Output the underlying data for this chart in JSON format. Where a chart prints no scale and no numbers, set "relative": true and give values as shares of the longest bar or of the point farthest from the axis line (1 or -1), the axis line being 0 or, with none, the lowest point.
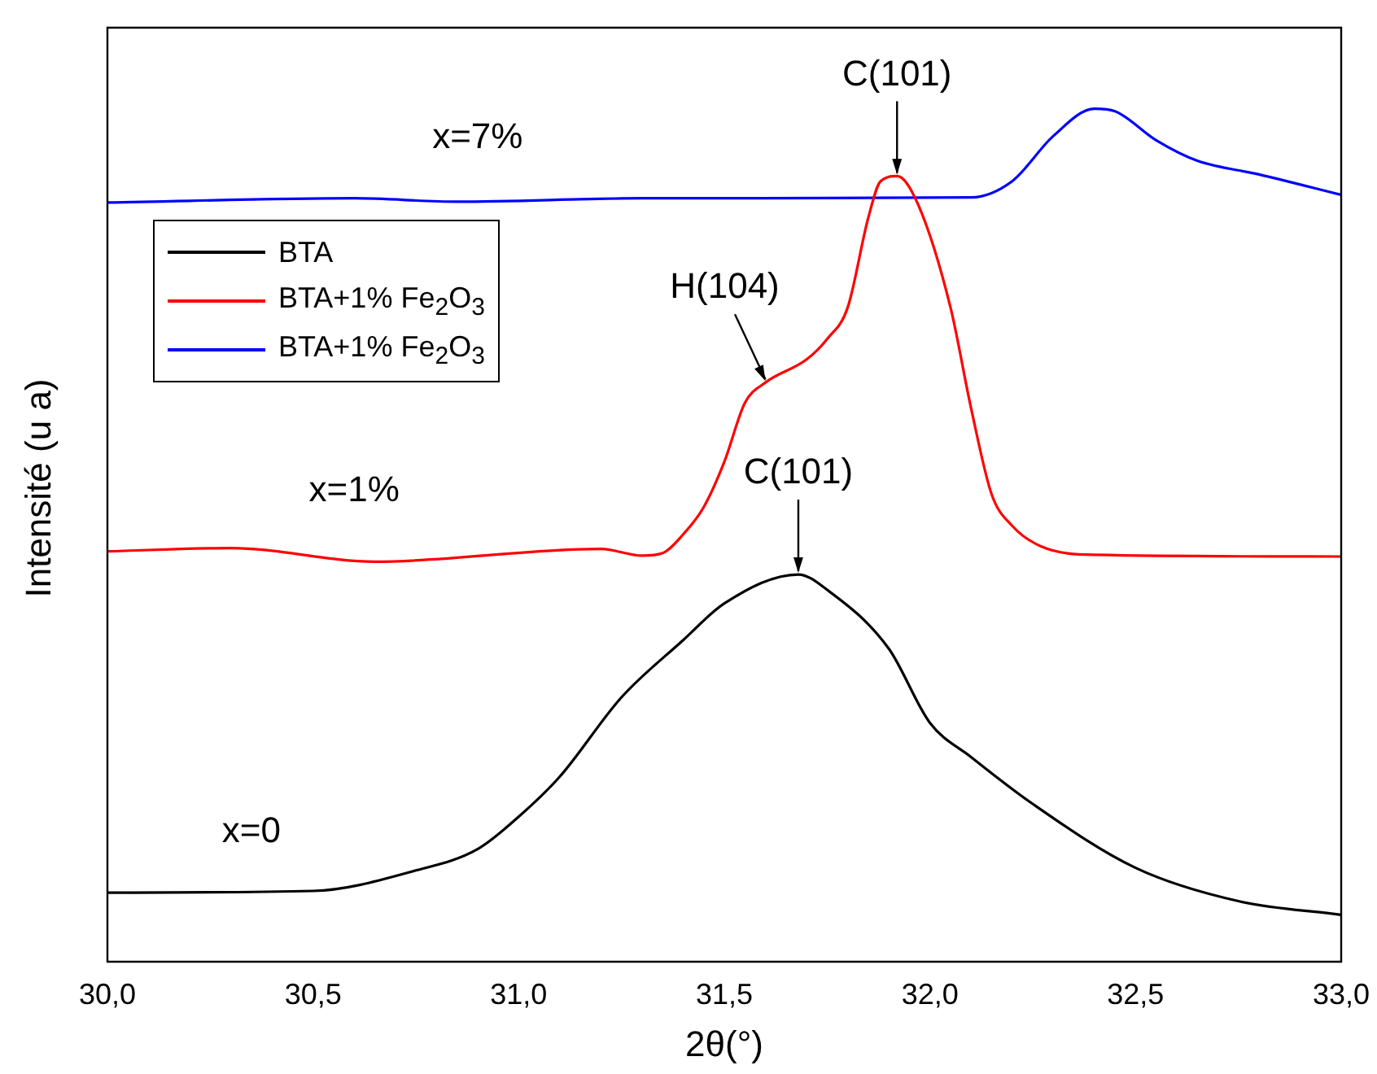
{
  "chart_data": {
    "type": "line",
    "relative": true,
    "xlabel": "2θ(°)",
    "ylabel": "Intensité (u a)",
    "xlim": [
      30,
      33
    ],
    "xticks": [
      {
        "value": 30,
        "label": "30,0"
      },
      {
        "value": 30.5,
        "label": "30,5"
      },
      {
        "value": 31,
        "label": "31,0"
      },
      {
        "value": 31.5,
        "label": "31,5"
      },
      {
        "value": 32,
        "label": "32,0"
      },
      {
        "value": 32.5,
        "label": "32,5"
      },
      {
        "value": 33,
        "label": "33,0"
      }
    ],
    "tick_labels": "x",
    "legend": "top left",
    "grid": false,
    "marker": "none",
    "line_style": "solid",
    "series": [
      {
        "name": "BTA",
        "color": "#000000",
        "x": [
          30,
          30.5,
          30.75,
          30.9,
          31,
          31.1,
          31.25,
          31.4,
          31.5,
          31.68,
          31.75,
          31.9,
          32,
          32.1,
          32.25,
          32.5,
          32.75,
          33
        ],
        "values": [
          0.081,
          0.083,
          0.107,
          0.132,
          0.17,
          0.217,
          0.31,
          0.377,
          0.42,
          0.454,
          0.436,
          0.367,
          0.28,
          0.24,
          0.185,
          0.11,
          0.071,
          0.055
        ]
      },
      {
        "name": "BTA+1% Fe$_{2}$O$_{3}$",
        "color": "#ff0000",
        "x": [
          30,
          30.3,
          30.65,
          31.2,
          31.3,
          31.35,
          31.4,
          31.45,
          31.5,
          31.55,
          31.6,
          31.7,
          31.75,
          31.8,
          31.85,
          31.88,
          31.92,
          31.97,
          32.05,
          32.1,
          32.15,
          32.2,
          32.27,
          32.4,
          33
        ],
        "values": [
          0.481,
          0.485,
          0.469,
          0.484,
          0.476,
          0.479,
          0.501,
          0.533,
          0.586,
          0.655,
          0.679,
          0.706,
          0.73,
          0.767,
          0.872,
          0.915,
          0.921,
          0.889,
          0.767,
          0.649,
          0.548,
          0.511,
          0.487,
          0.477,
          0.475
        ]
      },
      {
        "name": "BTA+1% Fe$_{2}$O$_{3}$",
        "color": "#0000ff",
        "x": [
          30,
          30.6,
          30.85,
          31.3,
          32.1,
          32.2,
          32.3,
          32.4,
          32.45,
          32.55,
          32.65,
          32.8,
          33
        ],
        "values": [
          0.89,
          0.895,
          0.891,
          0.895,
          0.896,
          0.915,
          0.968,
          1,
          0.997,
          0.963,
          0.939,
          0.923,
          0.899
        ]
      }
    ],
    "annotations": [
      {
        "text": "x=7%",
        "x": 30.9,
        "y": 0.895
      },
      {
        "text": "x=1%",
        "x": 30.6,
        "y": 0.481
      },
      {
        "text": "x=0",
        "x": 30.35,
        "y": 0.081
      },
      {
        "text": "C(101)",
        "x": 31.92,
        "y": 0.921
      },
      {
        "text": "H(104)",
        "x": 31.6,
        "y": 0.679
      },
      {
        "text": "C(101)",
        "x": 31.68,
        "y": 0.454
      }
    ]
  }
}
